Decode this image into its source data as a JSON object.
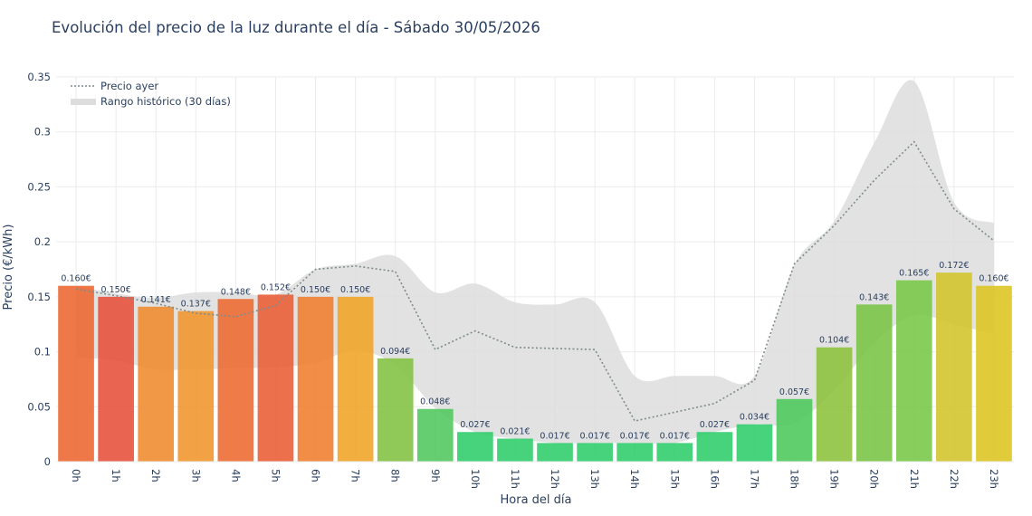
{
  "title": "Evolución del precio de la luz durante el día - Sábado 30/05/2026",
  "chart_data": {
    "type": "bar",
    "title": "Evolución del precio de la luz durante el día - Sábado 30/05/2026",
    "xlabel": "Hora del día",
    "ylabel": "Precio (€/kWh)",
    "ylim": [
      0,
      0.35
    ],
    "yticks": [
      "0",
      "0.05",
      "0.1",
      "0.15",
      "0.2",
      "0.25",
      "0.3",
      "0.35"
    ],
    "grid": true,
    "legend_position": "top-left",
    "categories": [
      "0h",
      "1h",
      "2h",
      "3h",
      "4h",
      "5h",
      "6h",
      "7h",
      "8h",
      "9h",
      "10h",
      "11h",
      "12h",
      "13h",
      "14h",
      "15h",
      "16h",
      "17h",
      "18h",
      "19h",
      "20h",
      "21h",
      "22h",
      "23h"
    ],
    "series": [
      {
        "name": "",
        "values": [
          0.16,
          0.15,
          0.141,
          0.137,
          0.148,
          0.152,
          0.15,
          0.15,
          0.094,
          0.048,
          0.027,
          0.021,
          0.017,
          0.017,
          0.017,
          0.017,
          0.027,
          0.034,
          0.057,
          0.104,
          0.143,
          0.165,
          0.172,
          0.16
        ],
        "labels": [
          "0.160€",
          "0.150€",
          "0.141€",
          "0.137€",
          "0.148€",
          "0.152€",
          "0.150€",
          "0.150€",
          "0.094€",
          "0.048€",
          "0.027€",
          "0.021€",
          "0.017€",
          "0.017€",
          "0.017€",
          "0.017€",
          "0.027€",
          "0.034€",
          "0.057€",
          "0.104€",
          "0.143€",
          "0.165€",
          "0.172€",
          "0.160€"
        ],
        "colors": [
          "#ed6530",
          "#e6503a",
          "#ef8a2c",
          "#f0952a",
          "#ed6a2f",
          "#ea5c34",
          "#ef7d2d",
          "#f0a324",
          "#82c142",
          "#4ec75d",
          "#2ecc6a",
          "#2ecc6a",
          "#2ecc6a",
          "#2ecc6a",
          "#2ecc6a",
          "#2ecc6a",
          "#2ecc6a",
          "#2ecc6a",
          "#4cc85b",
          "#8bc23a",
          "#79c443",
          "#78c745",
          "#d2c42a",
          "#dcc520"
        ]
      },
      {
        "name": "Precio ayer",
        "values": [
          0.157,
          0.151,
          0.144,
          0.135,
          0.132,
          0.142,
          0.175,
          0.178,
          0.173,
          0.102,
          0.119,
          0.104,
          0.103,
          0.102,
          0.037,
          0.045,
          0.053,
          0.074,
          0.18,
          0.215,
          0.256,
          0.291,
          0.23,
          0.201
        ],
        "color": "#7f8c8d"
      },
      {
        "name": "Rango histórico (30 días)",
        "upper": [
          0.16,
          0.153,
          0.149,
          0.154,
          0.154,
          0.152,
          0.175,
          0.18,
          0.187,
          0.154,
          0.162,
          0.145,
          0.143,
          0.145,
          0.078,
          0.078,
          0.078,
          0.078,
          0.179,
          0.219,
          0.29,
          0.346,
          0.236,
          0.217
        ],
        "lower": [
          0.095,
          0.092,
          0.084,
          0.084,
          0.085,
          0.086,
          0.09,
          0.101,
          0.088,
          0.049,
          0.027,
          0.021,
          0.017,
          0.017,
          0.017,
          0.017,
          0.027,
          0.034,
          0.035,
          0.065,
          0.108,
          0.133,
          0.125,
          0.116
        ],
        "color": "#dddddd"
      }
    ]
  }
}
